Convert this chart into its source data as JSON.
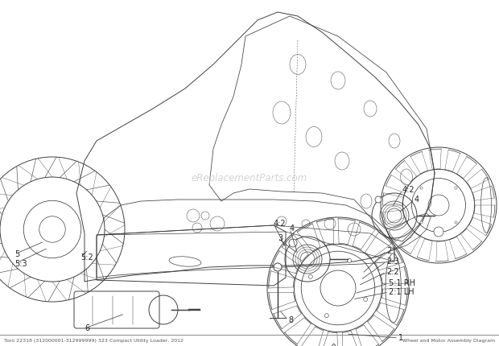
{
  "background_color": "#ffffff",
  "line_color": "#404040",
  "light_line_color": "#606060",
  "label_color": "#222222",
  "watermark": "eReplacementParts.com",
  "watermark_color": "#c8c8c8",
  "figsize": [
    6.2,
    4.3
  ],
  "dpi": 100,
  "bottom_text_left": "Toro 22318 (312000001-312999999) 323 Compact Utility Loader, 2012",
  "bottom_text_right": "Wheel and Motor Assembly Diagram",
  "bottom_border_color": "#888888"
}
